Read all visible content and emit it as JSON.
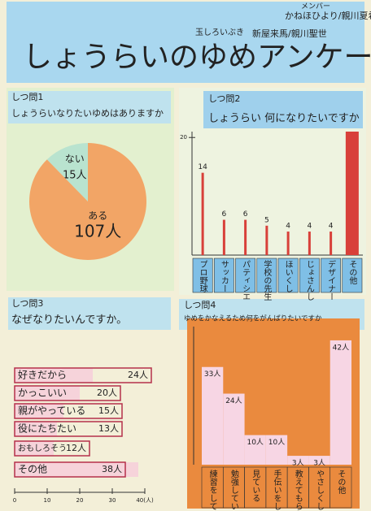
{
  "header": {
    "title": "しょうらいのゆめアンケート",
    "members_label": "メンバー",
    "members": [
      "かねほひより/親川夏希",
      "玉しろいぶき",
      "新屋来馬/親川聖世"
    ]
  },
  "chart_data": [
    {
      "type": "pie",
      "title": "しつ問1",
      "subtitle": "しょうらいなりたいゆめはありますか",
      "categories": [
        "ない",
        "ある"
      ],
      "values": [
        15,
        107
      ],
      "value_labels": [
        "15人",
        "107人"
      ],
      "colors": [
        "#b9e3cf",
        "#f2a566"
      ]
    },
    {
      "type": "bar",
      "title": "しつ問2",
      "subtitle": "しょうらい 何になりたいですか",
      "categories": [
        "プロ野球",
        "サッカー",
        "パティシエ",
        "学校の先生",
        "ほいくし",
        "じょさんし",
        "デザイナー",
        "その他"
      ],
      "values": [
        14,
        6,
        6,
        5,
        4,
        4,
        4,
        21
      ],
      "color": "#d8403a",
      "ylim": [
        0,
        21
      ],
      "yticks": [
        20
      ]
    },
    {
      "type": "hbar",
      "title": "しつ問3",
      "subtitle": "なぜなりたいんですか。",
      "categories": [
        "好きだから",
        "かっこいい",
        "親がやっている",
        "役にたちたい",
        "おもしろそう",
        "その他"
      ],
      "values": [
        24,
        20,
        15,
        13,
        12,
        38
      ],
      "value_labels": [
        "24人",
        "20人",
        "15人",
        "13人",
        "12人",
        "38人"
      ],
      "color": "#f6d3da",
      "xlim": [
        0,
        40
      ],
      "xticks": [
        0,
        10,
        20,
        30,
        {
          "value": 40,
          "label": "40(人)"
        }
      ]
    },
    {
      "type": "column",
      "title": "しつ問4",
      "subtitle": "ゆめをかなえるため何をがんばりたいですか",
      "categories": [
        "練習をしている",
        "勉強している",
        "見ている",
        "手伝いをしている",
        "教えてもらう",
        "やさしくしている",
        "その他"
      ],
      "values": [
        33,
        24,
        10,
        10,
        3,
        3,
        42
      ],
      "value_labels": [
        "33人",
        "24人",
        "10人",
        "10人",
        "3人",
        "3人",
        "42人"
      ],
      "color": "#f7d6e4",
      "ylim": [
        0,
        45
      ]
    }
  ]
}
